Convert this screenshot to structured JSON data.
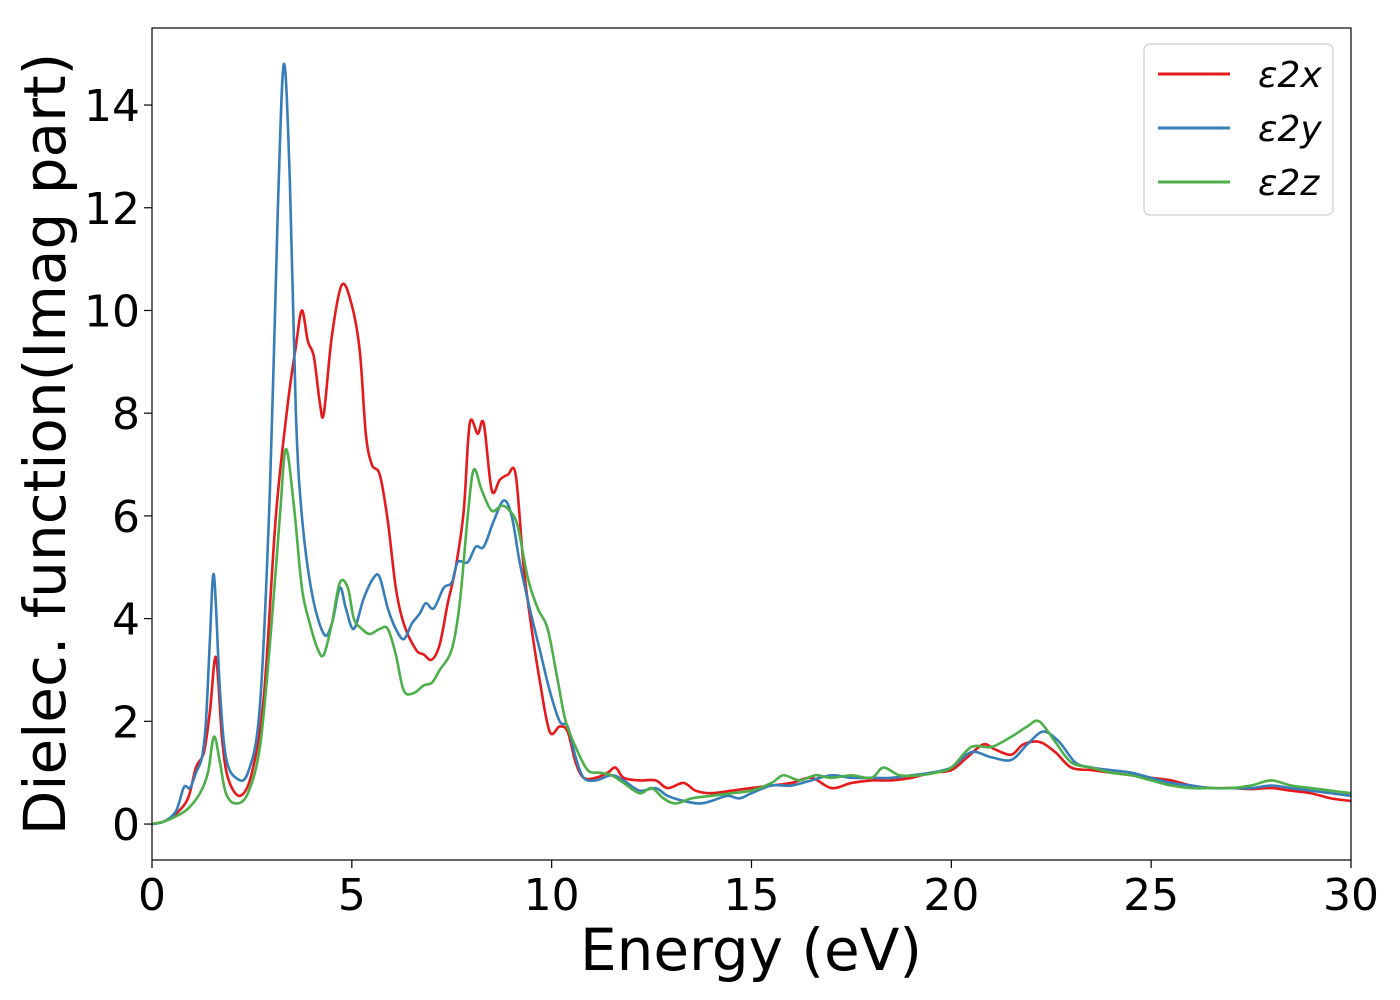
{
  "chart_data": {
    "type": "line",
    "title": "",
    "xlabel": "Energy (eV)",
    "ylabel": "Dielec. function(Imag part)",
    "xlim": [
      0,
      30
    ],
    "ylim": [
      -0.7,
      15.5
    ],
    "xticks": [
      0,
      5,
      10,
      15,
      20,
      25,
      30
    ],
    "xtick_labels": [
      "0",
      "5",
      "10",
      "15",
      "20",
      "25",
      "30"
    ],
    "yticks": [
      0,
      2,
      4,
      6,
      8,
      10,
      12,
      14
    ],
    "ytick_labels": [
      "0",
      "2",
      "4",
      "6",
      "8",
      "10",
      "12",
      "14"
    ],
    "grid": false,
    "legend_position": "top-right",
    "series": [
      {
        "name": "ε2x",
        "color": "#e41a1c",
        "points": [
          [
            0,
            0
          ],
          [
            0.3,
            0.05
          ],
          [
            0.6,
            0.2
          ],
          [
            0.9,
            0.5
          ],
          [
            1.1,
            1.1
          ],
          [
            1.3,
            1.4
          ],
          [
            1.45,
            2.2
          ],
          [
            1.6,
            3.25
          ],
          [
            1.75,
            1.7
          ],
          [
            1.9,
            0.9
          ],
          [
            2.2,
            0.55
          ],
          [
            2.5,
            1.0
          ],
          [
            2.8,
            2.5
          ],
          [
            3.1,
            6.0
          ],
          [
            3.4,
            8.2
          ],
          [
            3.6,
            9.3
          ],
          [
            3.75,
            10.0
          ],
          [
            3.9,
            9.4
          ],
          [
            4.05,
            9.1
          ],
          [
            4.2,
            8.2
          ],
          [
            4.3,
            8.0
          ],
          [
            4.5,
            9.5
          ],
          [
            4.75,
            10.5
          ],
          [
            5.0,
            10.1
          ],
          [
            5.2,
            9.2
          ],
          [
            5.35,
            7.6
          ],
          [
            5.5,
            7.0
          ],
          [
            5.7,
            6.8
          ],
          [
            5.9,
            5.9
          ],
          [
            6.1,
            4.6
          ],
          [
            6.3,
            3.9
          ],
          [
            6.6,
            3.4
          ],
          [
            6.8,
            3.3
          ],
          [
            7.0,
            3.2
          ],
          [
            7.2,
            3.5
          ],
          [
            7.4,
            4.3
          ],
          [
            7.6,
            5.0
          ],
          [
            7.8,
            6.1
          ],
          [
            7.95,
            7.8
          ],
          [
            8.15,
            7.6
          ],
          [
            8.3,
            7.8
          ],
          [
            8.5,
            6.5
          ],
          [
            8.7,
            6.7
          ],
          [
            8.9,
            6.8
          ],
          [
            9.1,
            6.8
          ],
          [
            9.3,
            5.0
          ],
          [
            9.5,
            3.8
          ],
          [
            9.7,
            2.8
          ],
          [
            9.95,
            1.8
          ],
          [
            10.2,
            1.9
          ],
          [
            10.4,
            1.8
          ],
          [
            10.6,
            1.2
          ],
          [
            10.8,
            0.9
          ],
          [
            11.1,
            0.9
          ],
          [
            11.4,
            1.0
          ],
          [
            11.6,
            1.1
          ],
          [
            11.8,
            0.9
          ],
          [
            12.2,
            0.85
          ],
          [
            12.6,
            0.85
          ],
          [
            12.9,
            0.7
          ],
          [
            13.3,
            0.8
          ],
          [
            13.6,
            0.65
          ],
          [
            14.0,
            0.6
          ],
          [
            14.5,
            0.65
          ],
          [
            15.0,
            0.7
          ],
          [
            15.5,
            0.75
          ],
          [
            16.0,
            0.8
          ],
          [
            16.5,
            0.9
          ],
          [
            17.0,
            0.7
          ],
          [
            17.5,
            0.8
          ],
          [
            18.0,
            0.85
          ],
          [
            18.5,
            0.85
          ],
          [
            19.0,
            0.9
          ],
          [
            19.5,
            1.0
          ],
          [
            20.0,
            1.05
          ],
          [
            20.4,
            1.3
          ],
          [
            20.8,
            1.55
          ],
          [
            21.1,
            1.45
          ],
          [
            21.5,
            1.35
          ],
          [
            21.8,
            1.55
          ],
          [
            22.2,
            1.6
          ],
          [
            22.6,
            1.4
          ],
          [
            23.0,
            1.1
          ],
          [
            23.5,
            1.05
          ],
          [
            24.0,
            1.0
          ],
          [
            24.5,
            0.95
          ],
          [
            25.0,
            0.9
          ],
          [
            25.5,
            0.85
          ],
          [
            26.0,
            0.75
          ],
          [
            26.5,
            0.7
          ],
          [
            27.0,
            0.7
          ],
          [
            27.5,
            0.68
          ],
          [
            28.0,
            0.7
          ],
          [
            28.5,
            0.65
          ],
          [
            29.0,
            0.6
          ],
          [
            29.5,
            0.5
          ],
          [
            30,
            0.45
          ]
        ]
      },
      {
        "name": "ε2y",
        "color": "#377eb8",
        "points": [
          [
            0,
            0
          ],
          [
            0.3,
            0.05
          ],
          [
            0.6,
            0.25
          ],
          [
            0.8,
            0.72
          ],
          [
            0.95,
            0.7
          ],
          [
            1.1,
            1.0
          ],
          [
            1.25,
            1.3
          ],
          [
            1.35,
            2.0
          ],
          [
            1.45,
            3.6
          ],
          [
            1.55,
            4.85
          ],
          [
            1.7,
            2.6
          ],
          [
            1.85,
            1.3
          ],
          [
            2.1,
            0.9
          ],
          [
            2.4,
            1.0
          ],
          [
            2.7,
            2.3
          ],
          [
            2.95,
            6.5
          ],
          [
            3.15,
            12.0
          ],
          [
            3.3,
            14.8
          ],
          [
            3.45,
            12.5
          ],
          [
            3.6,
            8.0
          ],
          [
            3.75,
            6.0
          ],
          [
            4.0,
            4.5
          ],
          [
            4.3,
            3.7
          ],
          [
            4.5,
            3.9
          ],
          [
            4.7,
            4.6
          ],
          [
            4.85,
            4.2
          ],
          [
            5.05,
            3.8
          ],
          [
            5.3,
            4.4
          ],
          [
            5.55,
            4.8
          ],
          [
            5.7,
            4.8
          ],
          [
            5.9,
            4.2
          ],
          [
            6.1,
            3.8
          ],
          [
            6.3,
            3.6
          ],
          [
            6.5,
            3.9
          ],
          [
            6.7,
            4.1
          ],
          [
            6.85,
            4.3
          ],
          [
            7.05,
            4.2
          ],
          [
            7.3,
            4.6
          ],
          [
            7.5,
            4.7
          ],
          [
            7.65,
            5.1
          ],
          [
            7.9,
            5.1
          ],
          [
            8.1,
            5.4
          ],
          [
            8.3,
            5.4
          ],
          [
            8.55,
            5.9
          ],
          [
            8.8,
            6.3
          ],
          [
            9.0,
            6.0
          ],
          [
            9.2,
            5.1
          ],
          [
            9.45,
            4.2
          ],
          [
            9.7,
            3.4
          ],
          [
            9.95,
            2.6
          ],
          [
            10.2,
            2.0
          ],
          [
            10.4,
            1.9
          ],
          [
            10.6,
            1.3
          ],
          [
            10.8,
            0.9
          ],
          [
            11.1,
            0.85
          ],
          [
            11.5,
            0.95
          ],
          [
            11.8,
            0.85
          ],
          [
            12.2,
            0.65
          ],
          [
            12.6,
            0.7
          ],
          [
            12.9,
            0.55
          ],
          [
            13.3,
            0.45
          ],
          [
            13.7,
            0.4
          ],
          [
            14.0,
            0.45
          ],
          [
            14.4,
            0.55
          ],
          [
            14.7,
            0.5
          ],
          [
            15.0,
            0.6
          ],
          [
            15.5,
            0.75
          ],
          [
            16.0,
            0.75
          ],
          [
            16.5,
            0.85
          ],
          [
            17.0,
            0.95
          ],
          [
            17.5,
            0.9
          ],
          [
            18.0,
            0.9
          ],
          [
            18.5,
            0.9
          ],
          [
            19.0,
            0.95
          ],
          [
            19.5,
            1.0
          ],
          [
            20.0,
            1.1
          ],
          [
            20.5,
            1.4
          ],
          [
            21.0,
            1.3
          ],
          [
            21.5,
            1.25
          ],
          [
            21.9,
            1.55
          ],
          [
            22.3,
            1.8
          ],
          [
            22.7,
            1.6
          ],
          [
            23.1,
            1.2
          ],
          [
            23.5,
            1.1
          ],
          [
            24.0,
            1.05
          ],
          [
            24.5,
            1.0
          ],
          [
            25.0,
            0.9
          ],
          [
            25.5,
            0.8
          ],
          [
            26.0,
            0.75
          ],
          [
            26.5,
            0.7
          ],
          [
            27.0,
            0.7
          ],
          [
            27.5,
            0.7
          ],
          [
            28.0,
            0.75
          ],
          [
            28.5,
            0.7
          ],
          [
            29.0,
            0.65
          ],
          [
            29.5,
            0.6
          ],
          [
            30,
            0.55
          ]
        ]
      },
      {
        "name": "ε2z",
        "color": "#4daf4a",
        "points": [
          [
            0,
            0
          ],
          [
            0.3,
            0.05
          ],
          [
            0.6,
            0.15
          ],
          [
            0.9,
            0.3
          ],
          [
            1.2,
            0.6
          ],
          [
            1.4,
            1.0
          ],
          [
            1.55,
            1.7
          ],
          [
            1.7,
            1.2
          ],
          [
            1.85,
            0.6
          ],
          [
            2.1,
            0.4
          ],
          [
            2.4,
            0.6
          ],
          [
            2.7,
            1.5
          ],
          [
            2.95,
            3.5
          ],
          [
            3.2,
            6.0
          ],
          [
            3.35,
            7.3
          ],
          [
            3.55,
            6.2
          ],
          [
            3.75,
            4.6
          ],
          [
            3.95,
            3.9
          ],
          [
            4.15,
            3.4
          ],
          [
            4.3,
            3.3
          ],
          [
            4.5,
            3.9
          ],
          [
            4.7,
            4.7
          ],
          [
            4.9,
            4.6
          ],
          [
            5.05,
            4.0
          ],
          [
            5.25,
            3.8
          ],
          [
            5.45,
            3.7
          ],
          [
            5.7,
            3.8
          ],
          [
            5.9,
            3.8
          ],
          [
            6.1,
            3.3
          ],
          [
            6.3,
            2.6
          ],
          [
            6.55,
            2.55
          ],
          [
            6.8,
            2.7
          ],
          [
            7.0,
            2.75
          ],
          [
            7.2,
            3.0
          ],
          [
            7.5,
            3.4
          ],
          [
            7.7,
            4.3
          ],
          [
            7.9,
            6.0
          ],
          [
            8.05,
            6.9
          ],
          [
            8.25,
            6.5
          ],
          [
            8.5,
            6.1
          ],
          [
            8.75,
            6.2
          ],
          [
            8.95,
            6.1
          ],
          [
            9.15,
            5.8
          ],
          [
            9.4,
            4.8
          ],
          [
            9.65,
            4.2
          ],
          [
            9.9,
            3.8
          ],
          [
            10.15,
            2.8
          ],
          [
            10.35,
            2.0
          ],
          [
            10.6,
            1.5
          ],
          [
            10.9,
            1.05
          ],
          [
            11.2,
            1.0
          ],
          [
            11.5,
            0.95
          ],
          [
            11.8,
            0.8
          ],
          [
            12.2,
            0.6
          ],
          [
            12.5,
            0.7
          ],
          [
            12.8,
            0.5
          ],
          [
            13.1,
            0.4
          ],
          [
            13.5,
            0.5
          ],
          [
            14.0,
            0.55
          ],
          [
            14.5,
            0.6
          ],
          [
            15.0,
            0.65
          ],
          [
            15.5,
            0.8
          ],
          [
            15.8,
            0.95
          ],
          [
            16.2,
            0.85
          ],
          [
            16.6,
            0.95
          ],
          [
            17.0,
            0.9
          ],
          [
            17.5,
            0.95
          ],
          [
            18.0,
            0.9
          ],
          [
            18.3,
            1.1
          ],
          [
            18.7,
            0.95
          ],
          [
            19.2,
            0.95
          ],
          [
            19.6,
            1.0
          ],
          [
            20.0,
            1.1
          ],
          [
            20.5,
            1.5
          ],
          [
            21.0,
            1.5
          ],
          [
            21.5,
            1.7
          ],
          [
            21.9,
            1.9
          ],
          [
            22.2,
            2.0
          ],
          [
            22.6,
            1.6
          ],
          [
            23.0,
            1.2
          ],
          [
            23.5,
            1.1
          ],
          [
            24.0,
            1.0
          ],
          [
            24.5,
            0.95
          ],
          [
            25.0,
            0.85
          ],
          [
            25.5,
            0.75
          ],
          [
            26.0,
            0.7
          ],
          [
            26.5,
            0.7
          ],
          [
            27.0,
            0.7
          ],
          [
            27.5,
            0.75
          ],
          [
            28.0,
            0.85
          ],
          [
            28.5,
            0.75
          ],
          [
            29.0,
            0.7
          ],
          [
            29.5,
            0.65
          ],
          [
            30,
            0.6
          ]
        ]
      }
    ]
  }
}
